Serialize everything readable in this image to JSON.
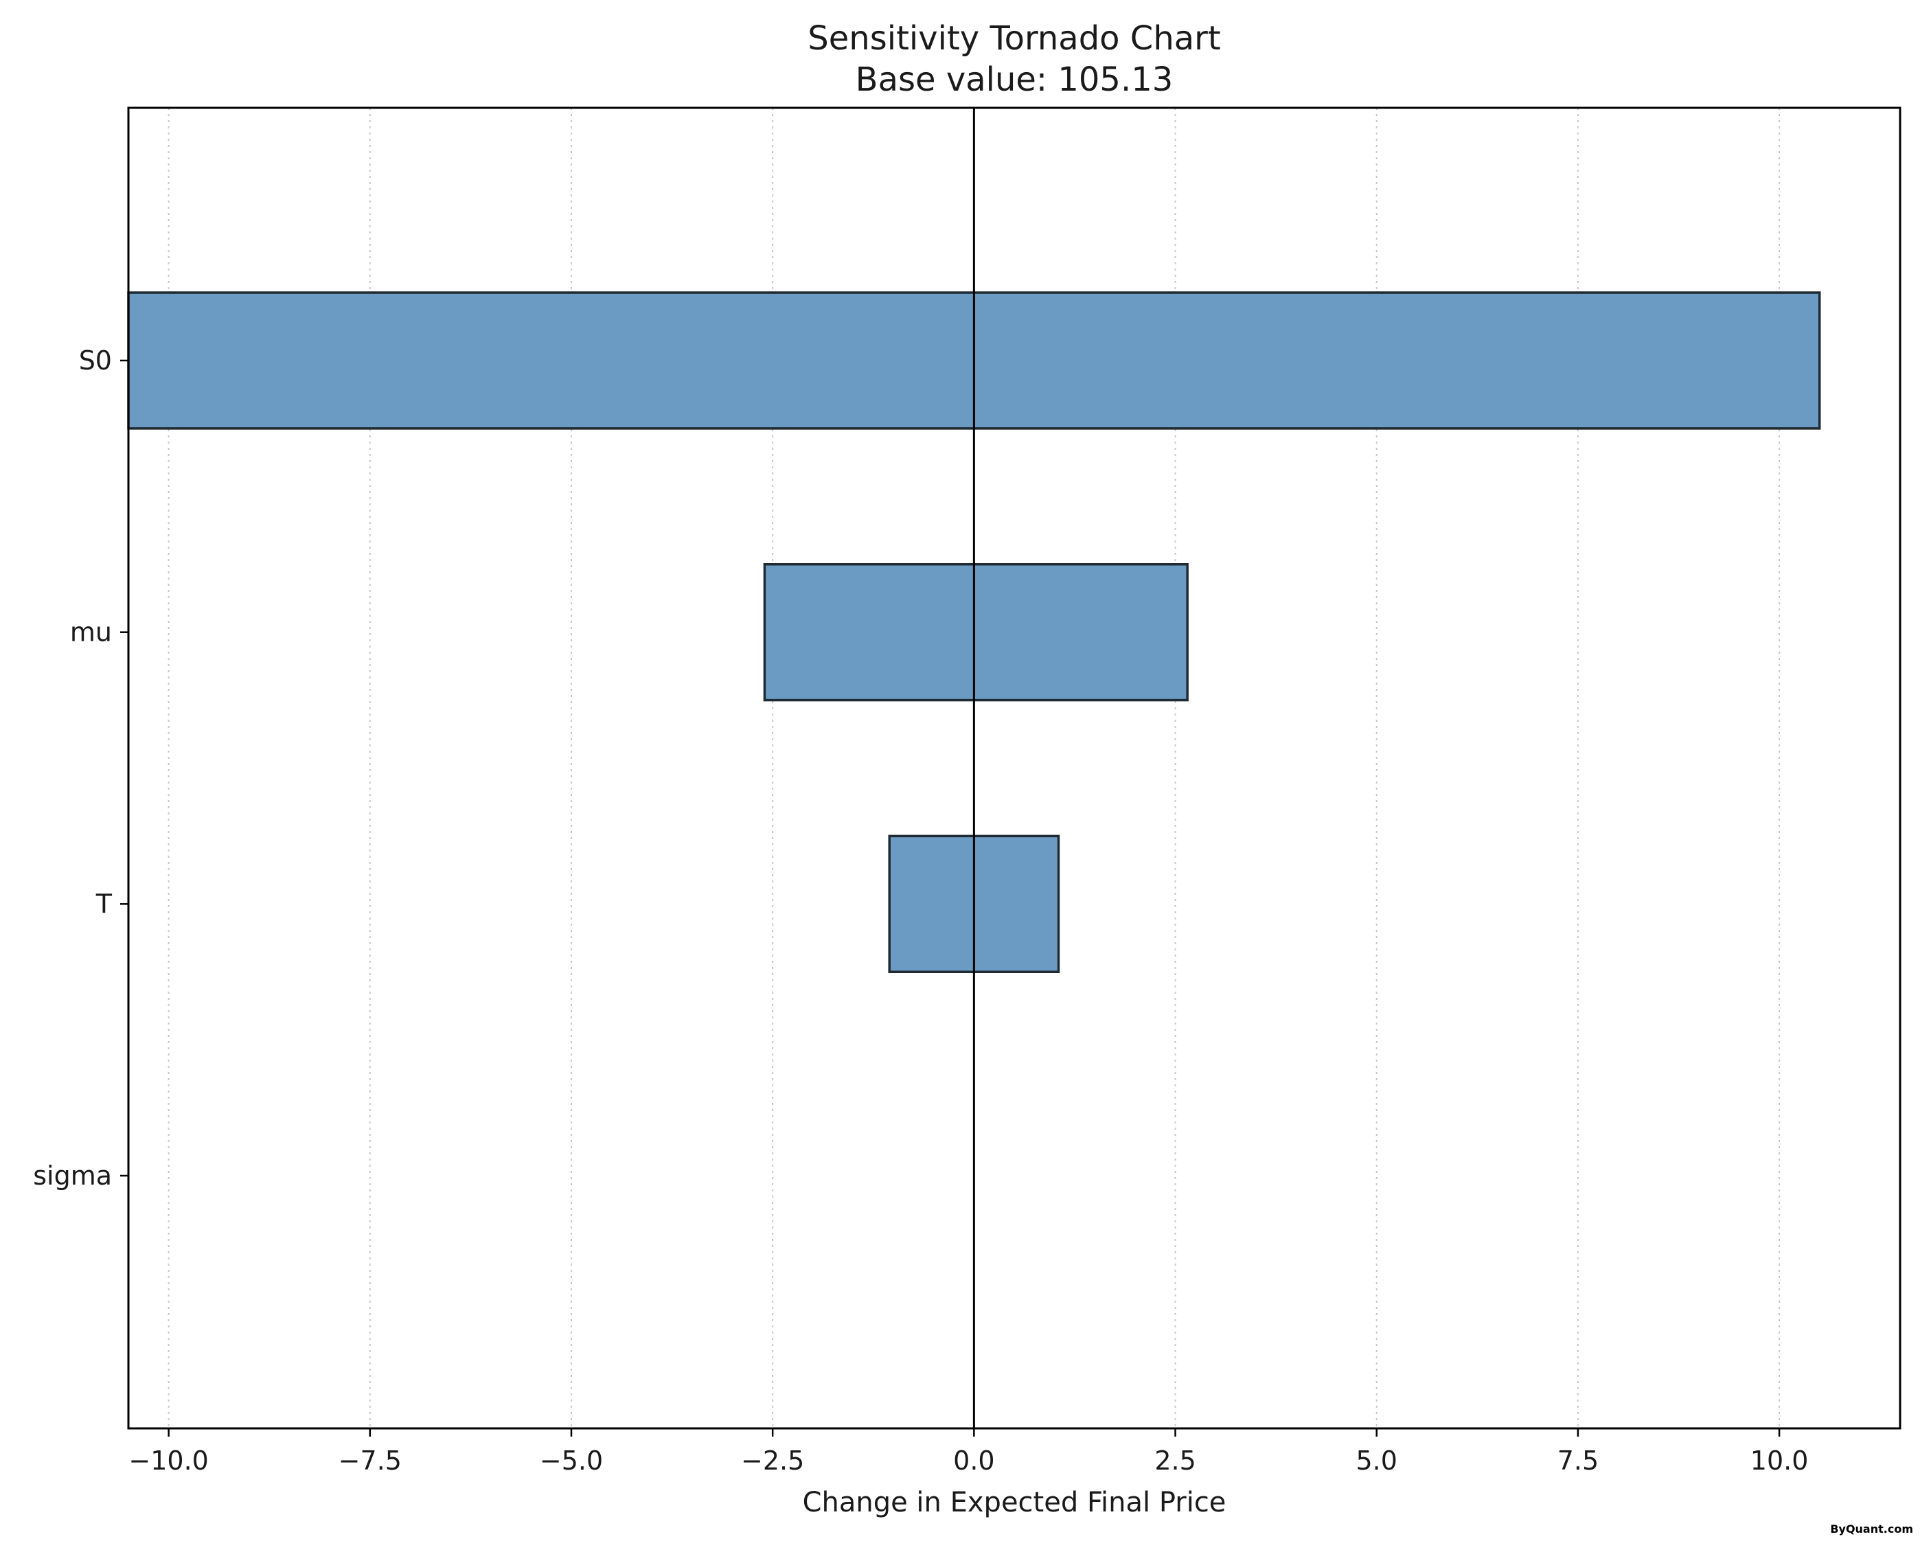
{
  "chart_data": {
    "type": "bar",
    "orientation": "horizontal",
    "title": "Sensitivity Tornado Chart",
    "subtitle": "Base value: 105.13",
    "xlabel": "Change in Expected Final Price",
    "ylabel": "",
    "xlim": [
      -10.5,
      11.5
    ],
    "x_ticks": [
      -10.0,
      -7.5,
      -5.0,
      -2.5,
      0.0,
      2.5,
      5.0,
      7.5,
      10.0
    ],
    "x_tick_labels": [
      "−10.0",
      "−7.5",
      "−5.0",
      "−2.5",
      "0.0",
      "2.5",
      "5.0",
      "7.5",
      "10.0"
    ],
    "categories": [
      "S0",
      "mu",
      "T",
      "sigma"
    ],
    "series": [
      {
        "low": -10.5,
        "high": 10.5
      },
      {
        "low": -2.6,
        "high": 2.65
      },
      {
        "low": -1.05,
        "high": 1.05
      },
      {
        "low": 0.0,
        "high": 0.0
      }
    ],
    "grid": {
      "x": true,
      "y": false,
      "style": "dotted"
    },
    "colors": {
      "bar_fill": "#6b9bc3",
      "bar_edge": "#1f2a33",
      "grid": "#c8c8c8",
      "axis": "#000000"
    }
  },
  "watermark": "ByQuant.com"
}
